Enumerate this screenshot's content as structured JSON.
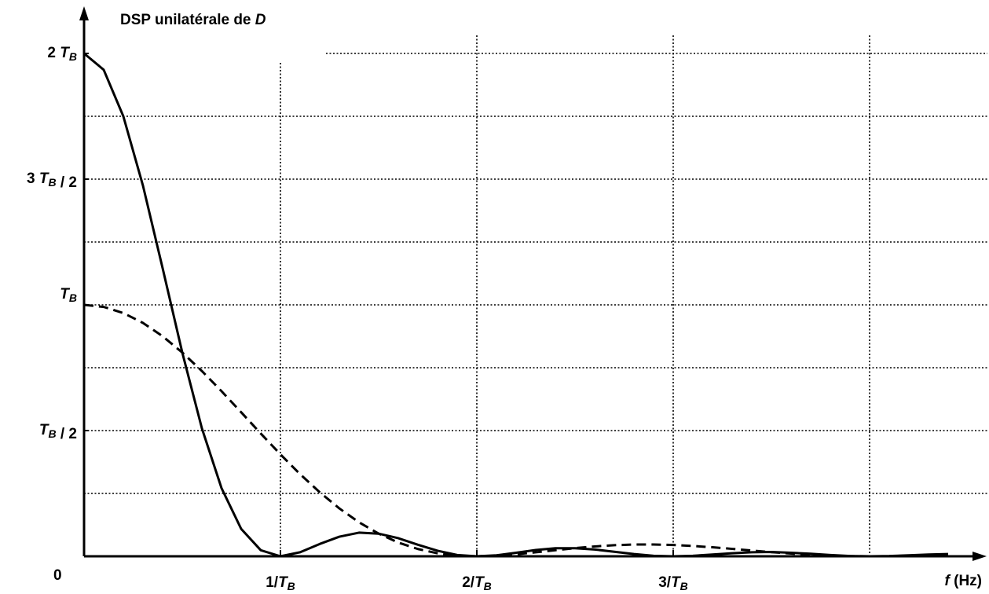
{
  "chart_data": {
    "type": "line",
    "title": "DSP unilatérale de D",
    "origin_label": "0",
    "x_label": "f (Hz)",
    "x": [
      0,
      0.1,
      0.2,
      0.3,
      0.4,
      0.5,
      0.6,
      0.7,
      0.8,
      0.9,
      1.0,
      1.1,
      1.2,
      1.3,
      1.4,
      1.5,
      1.6,
      1.7,
      1.8,
      1.9,
      2.0,
      2.1,
      2.2,
      2.3,
      2.4,
      2.5,
      2.6,
      2.7,
      2.8,
      2.9,
      3.0,
      3.1,
      3.2,
      3.3,
      3.4,
      3.5,
      3.6,
      3.7,
      3.8,
      3.9,
      4.0,
      4.1,
      4.2,
      4.3,
      4.4
    ],
    "series": [
      {
        "color": "#000000",
        "dash": false,
        "values": [
          2,
          1.935,
          1.75,
          1.474,
          1.146,
          0.811,
          0.509,
          0.271,
          0.109,
          0.024,
          0,
          0.016,
          0.049,
          0.078,
          0.094,
          0.09,
          0.072,
          0.046,
          0.022,
          0.005,
          0,
          0.004,
          0.014,
          0.025,
          0.032,
          0.032,
          0.027,
          0.018,
          0.009,
          0.002,
          0,
          0.002,
          0.007,
          0.012,
          0.016,
          0.017,
          0.014,
          0.01,
          0.005,
          0.001,
          0,
          0.001,
          0.004,
          0.007,
          0.009
        ]
      },
      {
        "color": "#000000",
        "dash": true,
        "values": [
          1,
          0.9918,
          0.9675,
          0.9282,
          0.8751,
          0.8106,
          0.7368,
          0.6566,
          0.5728,
          0.4881,
          0.4053,
          0.3267,
          0.2546,
          0.1904,
          0.1353,
          0.0901,
          0.0547,
          0.0289,
          0.0119,
          0.0027,
          0,
          0.0022,
          0.008,
          0.0158,
          0.0243,
          0.0324,
          0.0392,
          0.0441,
          0.0468,
          0.047,
          0.045,
          0.0411,
          0.0358,
          0.0295,
          0.0229,
          0.0165,
          0.0108,
          0.0061,
          0.0027,
          0.0007,
          0,
          null,
          null,
          null,
          null
        ]
      }
    ],
    "xlim": [
      0,
      4.57
    ],
    "ylim": [
      0,
      2.18
    ],
    "xticks": [
      {
        "value": 1,
        "label": "1/TB"
      },
      {
        "value": 2,
        "label": "2/TB"
      },
      {
        "value": 3,
        "label": "3/TB"
      }
    ],
    "xgrid": [
      1,
      2,
      3,
      4
    ],
    "yticks": [
      {
        "value": 0.5,
        "label": "TB / 2"
      },
      {
        "value": 1,
        "label": "TB"
      },
      {
        "value": 1.5,
        "label": "3 TB / 2"
      },
      {
        "value": 2,
        "label": "2 TB"
      }
    ],
    "ygrid": [
      0.25,
      0.5,
      0.75,
      1,
      1.25,
      1.5,
      1.75,
      2
    ],
    "grid": true
  }
}
